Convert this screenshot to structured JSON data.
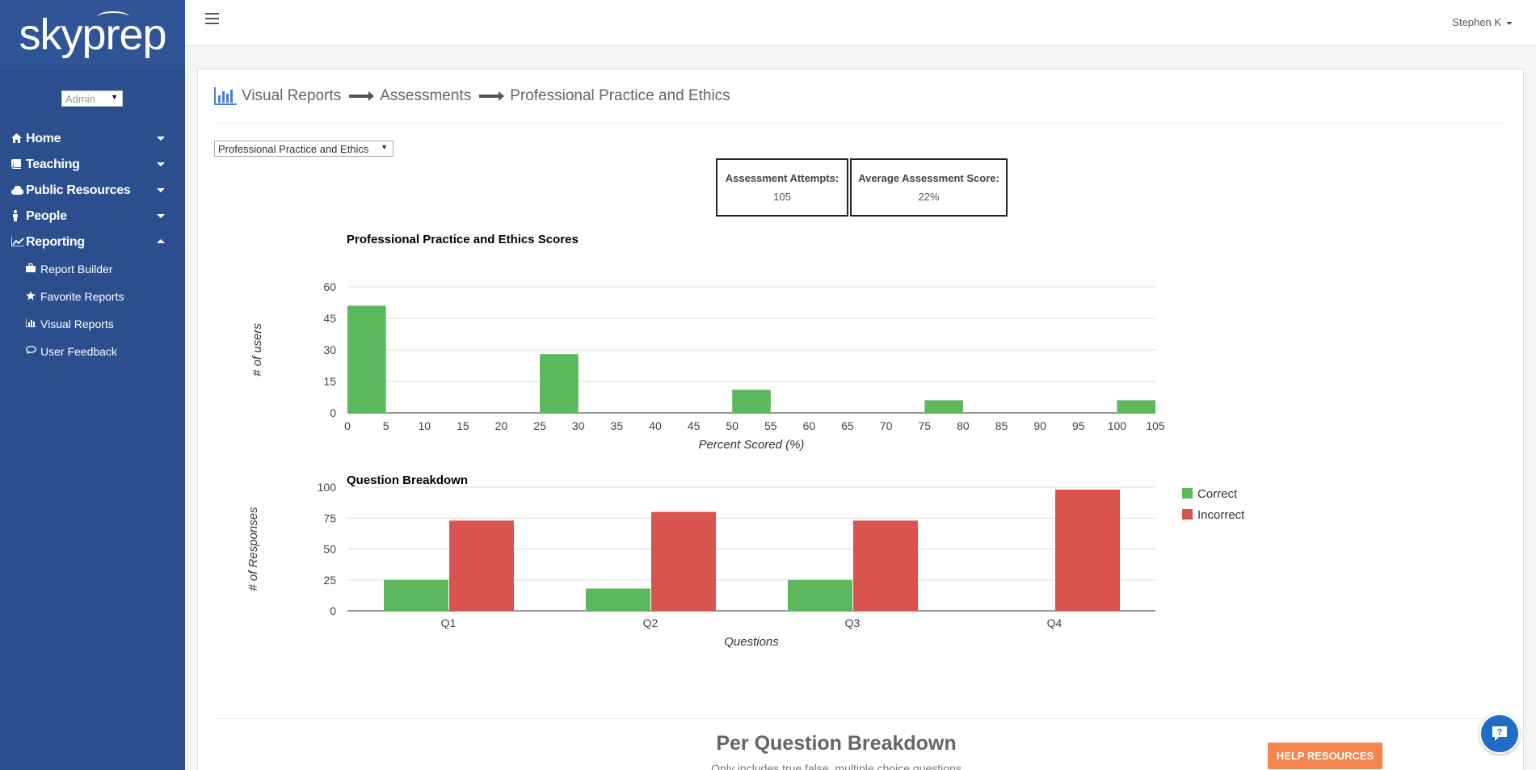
{
  "app": {
    "logo_text": "skyprep"
  },
  "sidebar": {
    "role": "Admin",
    "items": [
      {
        "label": "Home",
        "icon": "home-icon",
        "state": "collapsed"
      },
      {
        "label": "Teaching",
        "icon": "book-icon",
        "state": "collapsed"
      },
      {
        "label": "Public Resources",
        "icon": "cloud-icon",
        "state": "collapsed"
      },
      {
        "label": "People",
        "icon": "person-icon",
        "state": "collapsed"
      },
      {
        "label": "Reporting",
        "icon": "line-chart-icon",
        "state": "expanded"
      }
    ],
    "sub_items": [
      {
        "label": "Report Builder",
        "icon": "briefcase-icon"
      },
      {
        "label": "Favorite Reports",
        "icon": "star-icon"
      },
      {
        "label": "Visual Reports",
        "icon": "bar-chart-icon"
      },
      {
        "label": "User Feedback",
        "icon": "comment-icon"
      }
    ]
  },
  "topbar": {
    "user_name": "Stephen K"
  },
  "breadcrumb": [
    "Visual Reports",
    "Assessments",
    "Professional Practice and Ethics"
  ],
  "assessment_select": {
    "value": "Professional Practice and Ethics"
  },
  "stats": {
    "attempts_label": "Assessment Attempts:",
    "attempts_value": "105",
    "avg_label": "Average Assessment Score:",
    "avg_value": "22%"
  },
  "chart_data": [
    {
      "type": "bar",
      "title": "Professional Practice and Ethics Scores",
      "xlabel": "Percent Scored (%)",
      "ylabel": "# of users",
      "ylim": [
        0,
        60
      ],
      "yticks": [
        0,
        15,
        30,
        45,
        60
      ],
      "xticks": [
        0,
        5,
        10,
        15,
        20,
        25,
        30,
        35,
        40,
        45,
        50,
        55,
        60,
        65,
        70,
        75,
        80,
        85,
        90,
        95,
        100,
        105
      ],
      "bins": [
        {
          "from": 0,
          "to": 5,
          "value": 51
        },
        {
          "from": 25,
          "to": 30,
          "value": 28
        },
        {
          "from": 50,
          "to": 55,
          "value": 11
        },
        {
          "from": 75,
          "to": 80,
          "value": 6
        },
        {
          "from": 100,
          "to": 105,
          "value": 6
        }
      ],
      "color": "#5cb85c"
    },
    {
      "type": "bar",
      "title": "Question Breakdown",
      "xlabel": "Questions",
      "ylabel": "# of Responses",
      "ylim": [
        0,
        100
      ],
      "yticks": [
        0,
        25,
        50,
        75,
        100
      ],
      "categories": [
        "Q1",
        "Q2",
        "Q3",
        "Q4"
      ],
      "series": [
        {
          "name": "Correct",
          "color": "#5cb85c",
          "values": [
            25,
            18,
            25,
            0
          ]
        },
        {
          "name": "Incorrect",
          "color": "#d9534f",
          "values": [
            73,
            80,
            73,
            98
          ]
        }
      ],
      "legend": "right"
    }
  ],
  "per_question": {
    "title": "Per Question Breakdown",
    "subtitle": "Only includes true false, multiple choice questions",
    "help_button": "HELP RESOURCES"
  }
}
